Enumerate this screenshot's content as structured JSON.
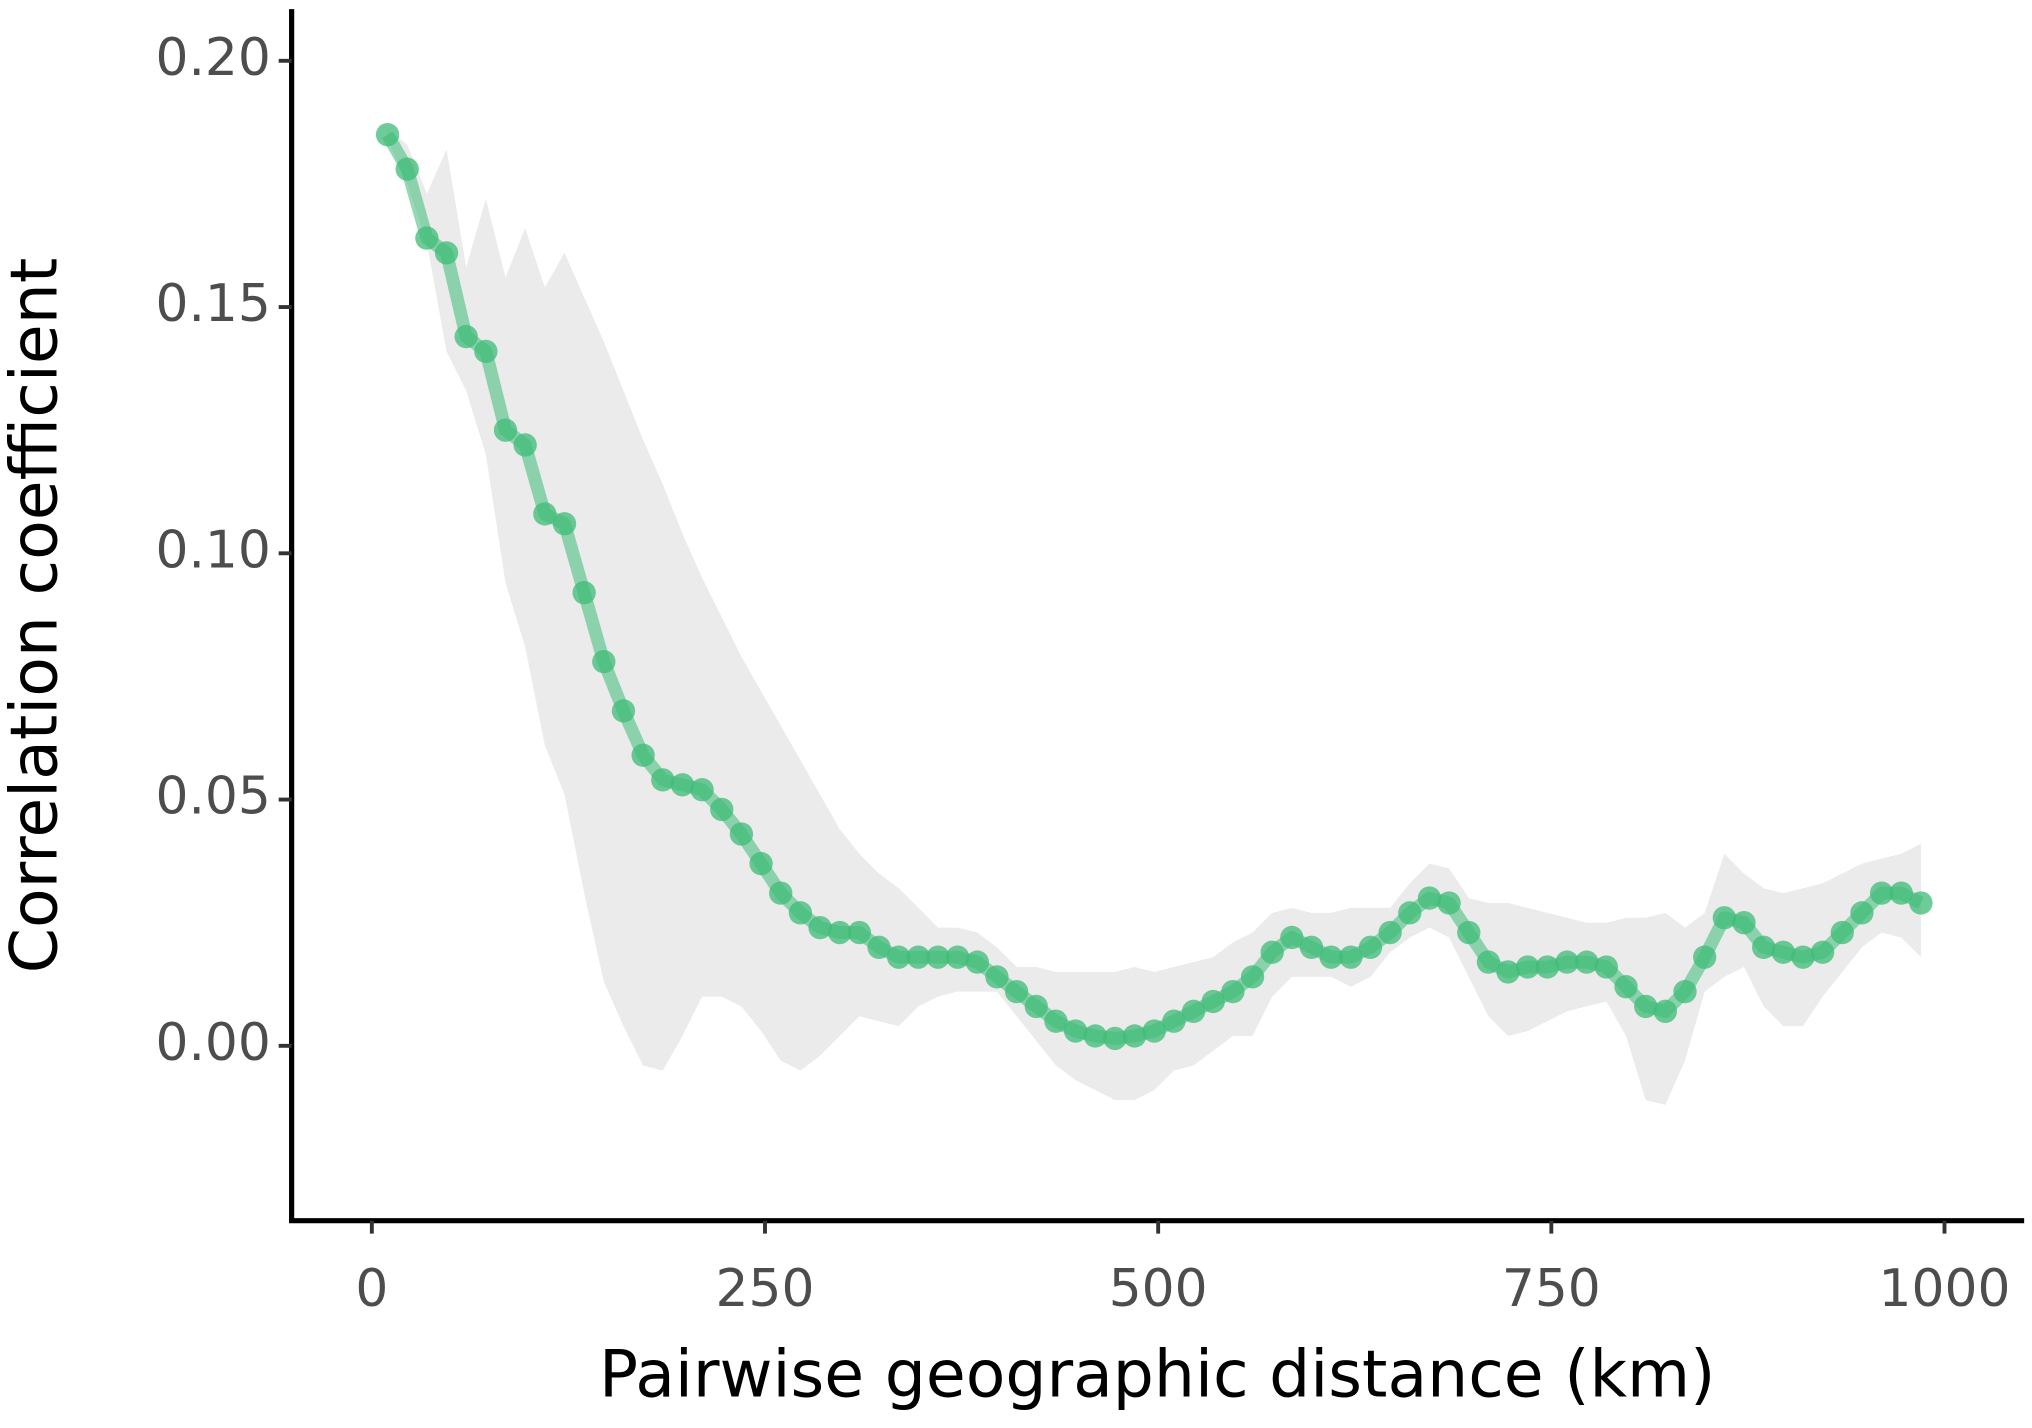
{
  "chart_data": {
    "type": "line",
    "x_label": "Pairwise geographic distance (km)",
    "y_label": "Correlation coefficient",
    "xlim": [
      -51,
      1049
    ],
    "ylim": [
      -0.0355,
      0.2105
    ],
    "xticks": [
      0,
      250,
      500,
      750,
      1000
    ],
    "yticks": [
      {
        "value": 0,
        "label": "0.00"
      },
      {
        "value": 0.05,
        "label": "0.05"
      },
      {
        "value": 0.1,
        "label": "0.10"
      },
      {
        "value": 0.15,
        "label": "0.15"
      },
      {
        "value": 0.2,
        "label": "0.20"
      }
    ],
    "band_color": "#ebebeb",
    "x": [
      10,
      22.5,
      35,
      47.5,
      60,
      72.5,
      85,
      97.5,
      110,
      122.5,
      135,
      147.5,
      160,
      172.5,
      185,
      197.5,
      210,
      222.5,
      235,
      247.5,
      260,
      272.5,
      285,
      297.5,
      310,
      322.5,
      335,
      347.5,
      360,
      372.5,
      385,
      397.5,
      410,
      422.5,
      435,
      447.5,
      460,
      472.5,
      485,
      497.5,
      510,
      522.5,
      535,
      547.5,
      560,
      572.5,
      585,
      597.5,
      610,
      622.5,
      635,
      647.5,
      660,
      672.5,
      685,
      697.5,
      710,
      722.5,
      735,
      747.5,
      760,
      772.5,
      785,
      797.5,
      810,
      822.5,
      835,
      847.5,
      860,
      872.5,
      885,
      897.5,
      910,
      922.5,
      935,
      947.5,
      960,
      972.5,
      985
    ],
    "series": [
      {
        "color": "#3dbb77",
        "values": [
          0.185,
          0.178,
          0.164,
          0.161,
          0.144,
          0.141,
          0.125,
          0.122,
          0.108,
          0.106,
          0.092,
          0.078,
          0.068,
          0.059,
          0.054,
          0.053,
          0.052,
          0.048,
          0.043,
          0.037,
          0.031,
          0.027,
          0.024,
          0.023,
          0.023,
          0.02,
          0.018,
          0.018,
          0.018,
          0.018,
          0.017,
          0.014,
          0.011,
          0.008,
          0.005,
          0.003,
          0.002,
          0.0015,
          0.002,
          0.003,
          0.005,
          0.007,
          0.009,
          0.011,
          0.014,
          0.019,
          0.022,
          0.02,
          0.018,
          0.018,
          0.02,
          0.023,
          0.027,
          0.03,
          0.029,
          0.023,
          0.017,
          0.015,
          0.016,
          0.016,
          0.017,
          0.017,
          0.016,
          0.012,
          0.008,
          0.007,
          0.011,
          0.018,
          0.026,
          0.025,
          0.02,
          0.019,
          0.018,
          0.019,
          0.023,
          0.027,
          0.031,
          0.031,
          0.029
        ],
        "upper": [
          0.186,
          0.183,
          0.173,
          0.182,
          0.158,
          0.172,
          0.156,
          0.166,
          0.154,
          0.161,
          0.152,
          0.143,
          0.133,
          0.123,
          0.114,
          0.104,
          0.095,
          0.087,
          0.079,
          0.072,
          0.065,
          0.058,
          0.051,
          0.044,
          0.039,
          0.035,
          0.032,
          0.028,
          0.024,
          0.024,
          0.023,
          0.02,
          0.016,
          0.016,
          0.015,
          0.015,
          0.015,
          0.015,
          0.016,
          0.015,
          0.016,
          0.017,
          0.018,
          0.021,
          0.023,
          0.027,
          0.028,
          0.027,
          0.027,
          0.028,
          0.028,
          0.028,
          0.033,
          0.037,
          0.036,
          0.03,
          0.029,
          0.029,
          0.028,
          0.027,
          0.026,
          0.025,
          0.025,
          0.026,
          0.026,
          0.027,
          0.024,
          0.027,
          0.039,
          0.035,
          0.032,
          0.031,
          0.032,
          0.033,
          0.035,
          0.037,
          0.038,
          0.039,
          0.041
        ],
        "lower": [
          0.184,
          0.175,
          0.163,
          0.141,
          0.133,
          0.12,
          0.094,
          0.081,
          0.061,
          0.051,
          0.031,
          0.013,
          0.004,
          -0.004,
          -0.005,
          0.002,
          0.01,
          0.01,
          0.008,
          0.003,
          -0.003,
          -0.005,
          -0.002,
          0.002,
          0.006,
          0.005,
          0.004,
          0.008,
          0.01,
          0.011,
          0.011,
          0.011,
          0.006,
          0.001,
          -0.004,
          -0.007,
          -0.009,
          -0.011,
          -0.011,
          -0.009,
          -0.005,
          -0.004,
          -0.001,
          0.002,
          0.002,
          0.01,
          0.014,
          0.014,
          0.014,
          0.012,
          0.014,
          0.019,
          0.022,
          0.024,
          0.022,
          0.014,
          0.006,
          0.002,
          0.003,
          0.005,
          0.007,
          0.008,
          0.009,
          0.002,
          -0.011,
          -0.012,
          -0.003,
          0.011,
          0.014,
          0.016,
          0.008,
          0.004,
          0.004,
          0.01,
          0.015,
          0.02,
          0.023,
          0.022,
          0.018
        ]
      }
    ]
  }
}
